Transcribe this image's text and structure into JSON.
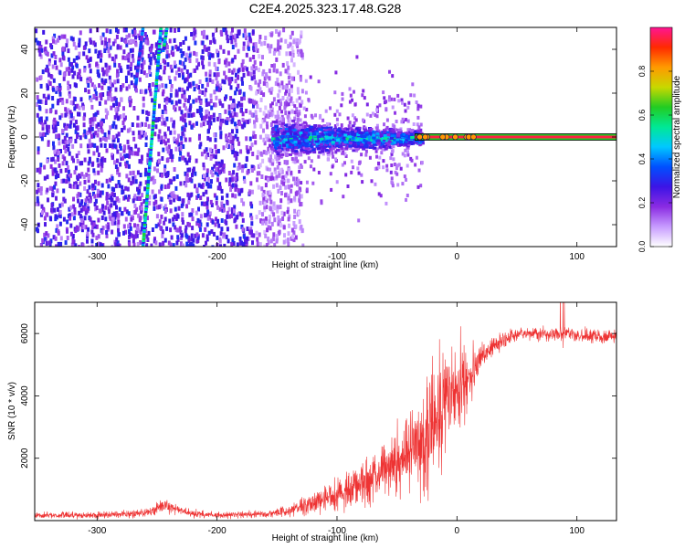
{
  "title": "C2E4.2025.323.17.48.G28",
  "chart_data": [
    {
      "type": "heatmap",
      "xlabel": "Height of straight line (km)",
      "ylabel": "Frequency (Hz)",
      "xlim": [
        -352,
        133
      ],
      "ylim": [
        -50,
        50
      ],
      "x_ticks": [
        -300,
        -200,
        -100,
        0,
        100
      ],
      "x_tick_labels": [
        "-300",
        "-200",
        "-100",
        "0",
        "100"
      ],
      "y_ticks": [
        -40,
        -20,
        0,
        20,
        40
      ],
      "y_tick_labels": [
        "-40",
        "-20",
        "0",
        "20",
        "40"
      ],
      "colorbar": {
        "label": "Normalized spectral amplitude",
        "range": [
          0,
          1
        ],
        "ticks": [
          0,
          0.2,
          0.4,
          0.6,
          0.8
        ],
        "tick_labels": [
          "0.0",
          "0.2",
          "0.4",
          "0.6",
          "0.8"
        ],
        "colors": [
          "#ffffff",
          "#c79bff",
          "#8a2be2",
          "#3c14e6",
          "#0050ff",
          "#00c8ff",
          "#00e896",
          "#22cc22",
          "#c8d800",
          "#ff9a00",
          "#ff2a00",
          "#ff1493"
        ]
      },
      "features": [
        {
          "name": "scattered noise",
          "x_range": [
            -352,
            -140
          ],
          "y_range": [
            -50,
            50
          ],
          "amplitude": 0.25
        },
        {
          "name": "diagonal streak",
          "x_start": -262,
          "y_start": -50,
          "x_end": -247,
          "y_end": 50,
          "amplitude": 0.45
        },
        {
          "name": "upper streak",
          "x_start": -268,
          "y_start": 24,
          "x_end": -262,
          "y_end": 50,
          "amplitude": 0.3
        },
        {
          "name": "upper streak 2",
          "x_start": -245,
          "y_start": 40,
          "x_end": -242,
          "y_end": 50,
          "amplitude": 0.45
        },
        {
          "name": "signal band",
          "x_range": [
            -155,
            -30
          ],
          "y_center": 0,
          "half_width": 6,
          "amplitude": 0.5
        },
        {
          "name": "carrier line",
          "x_range": [
            -35,
            133
          ],
          "y_center": 0,
          "amplitude": 0.95
        }
      ]
    },
    {
      "type": "line",
      "xlabel": "Height of straight line (km)",
      "ylabel": "SNR (10 * v/v)",
      "xlim": [
        -352,
        133
      ],
      "ylim": [
        0,
        7000
      ],
      "x_ticks": [
        -300,
        -200,
        -100,
        0,
        100
      ],
      "x_tick_labels": [
        "-300",
        "-200",
        "-100",
        "0",
        "100"
      ],
      "y_ticks": [
        2000,
        4000,
        6000
      ],
      "y_tick_labels": [
        "2000",
        "4000",
        "6000"
      ],
      "color": "#ee3333",
      "series": [
        {
          "name": "SNR",
          "x": [
            -352,
            -300,
            -270,
            -255,
            -245,
            -235,
            -220,
            -200,
            -160,
            -140,
            -120,
            -100,
            -80,
            -60,
            -40,
            -30,
            -20,
            -10,
            0,
            5,
            10,
            20,
            30,
            40,
            50,
            60,
            80,
            90,
            100,
            133
          ],
          "y": [
            170,
            180,
            220,
            280,
            480,
            380,
            220,
            180,
            200,
            320,
            560,
            850,
            1150,
            1650,
            2300,
            2650,
            3050,
            3600,
            4200,
            4500,
            4700,
            5150,
            5600,
            5800,
            5950,
            6000,
            5950,
            6050,
            5920,
            5900
          ],
          "noise": [
            90,
            90,
            110,
            140,
            200,
            160,
            110,
            90,
            100,
            160,
            300,
            450,
            600,
            800,
            1150,
            1500,
            1600,
            1500,
            1300,
            1100,
            700,
            450,
            300,
            220,
            200,
            200,
            200,
            220,
            200,
            200
          ]
        }
      ]
    }
  ]
}
